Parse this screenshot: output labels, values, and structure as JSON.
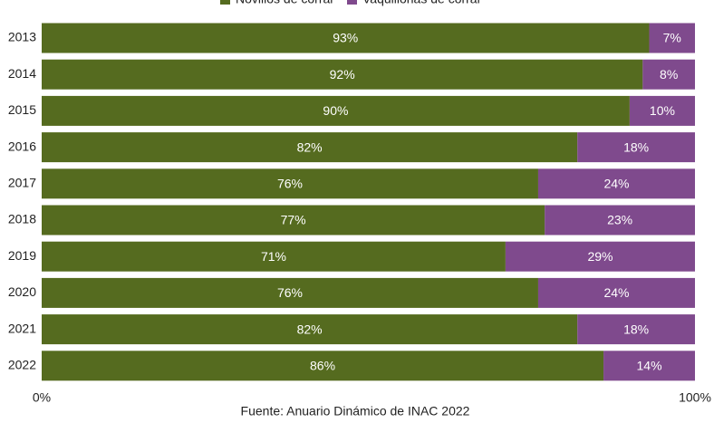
{
  "chart_data": {
    "type": "stacked_barh",
    "categories": [
      "2013",
      "2014",
      "2015",
      "2016",
      "2017",
      "2018",
      "2019",
      "2020",
      "2021",
      "2022"
    ],
    "series": [
      {
        "name": "Novillos de corral",
        "color": "#556b1f",
        "values": [
          93,
          92,
          90,
          82,
          76,
          77,
          71,
          76,
          82,
          86
        ],
        "value_labels": [
          "93%",
          "92%",
          "90%",
          "82%",
          "76%",
          "77%",
          "71%",
          "76%",
          "82%",
          "86%"
        ]
      },
      {
        "name": "Vaquillonas de corral",
        "color": "#7f4a8d",
        "values": [
          7,
          8,
          10,
          18,
          24,
          23,
          29,
          24,
          18,
          14
        ],
        "value_labels": [
          "7%",
          "8%",
          "10%",
          "18%",
          "24%",
          "23%",
          "29%",
          "24%",
          "18%",
          "14%"
        ]
      }
    ],
    "xlim": [
      0,
      100
    ],
    "xticks": [
      {
        "value": 0,
        "label": "0%"
      },
      {
        "value": 100,
        "label": "100%"
      }
    ],
    "legend": "top",
    "source": "Fuente: Anuario Dinámico de INAC 2022"
  }
}
